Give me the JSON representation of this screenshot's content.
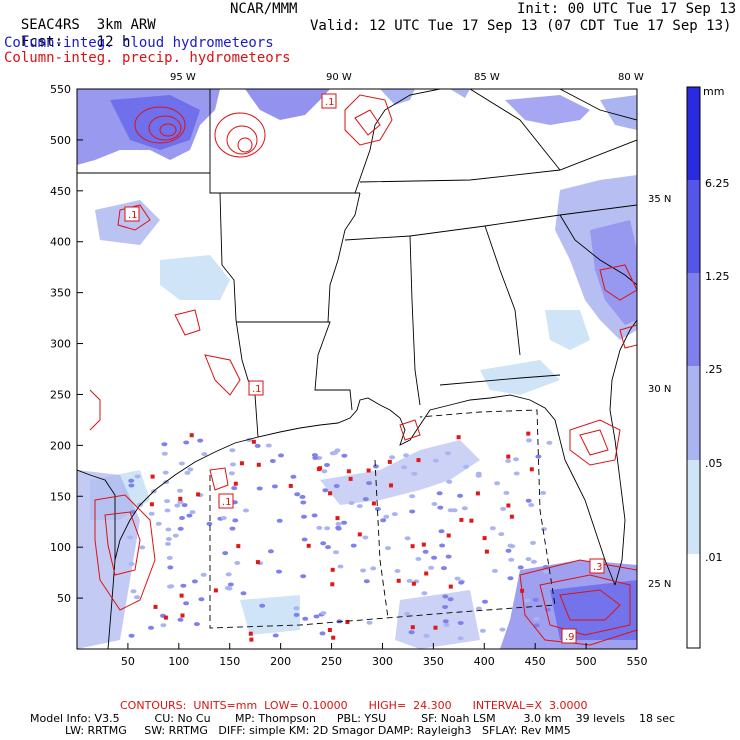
{
  "header": {
    "project": "SEAC4RS",
    "model": "3km ARW",
    "org": "NCAR/MMM",
    "init": "Init: 00 UTC Tue 17 Sep 13",
    "fcst_label": "Fcst:",
    "fcst_value": "12 h",
    "valid": "Valid: 12 UTC Tue 17 Sep 13 (07 CDT Tue 17 Sep 13)",
    "field_cloud": "Column-integ. cloud hydrometeors",
    "field_precip": "Column-integ. precip. hydrometeors"
  },
  "axes": {
    "lon_labels": [
      "95 W",
      "90 W",
      "85 W",
      "80 W"
    ],
    "lat_labels": [
      "35 N",
      "30 N",
      "25 N"
    ],
    "x_ticks": [
      "50",
      "100",
      "150",
      "200",
      "250",
      "300",
      "350",
      "400",
      "450",
      "500",
      "550"
    ],
    "y_ticks": [
      "50",
      "100",
      "150",
      "200",
      "250",
      "300",
      "350",
      "400",
      "450",
      "500",
      "550"
    ]
  },
  "colorbar": {
    "unit": "mm",
    "levels": [
      "6.25",
      "1.25",
      ".25",
      ".05",
      ".01"
    ],
    "colors": [
      "#2a2ae0",
      "#5555ea",
      "#8080ec",
      "#aab4f0",
      "#cfe4f6",
      "#eaf6fb",
      "#ffffff"
    ]
  },
  "contour_markers": [
    ".1",
    ".1",
    ".1",
    ".1",
    ".3",
    ".9"
  ],
  "footer": {
    "contours": "CONTOURS:  UNITS=mm  LOW= 0.10000      HIGH=  24.300      INTERVAL=X  3.0000",
    "model_info_1": "Model Info: V3.5          CU: No Cu       MP: Thompson      PBL: YSU          SF: Noah LSM        3.0 km    39 levels    18 sec",
    "model_info_2": "          LW: RRTMG     SW: RRTMG   DIFF: simple KM: 2D Smagor DAMP: Rayleigh3   SFLAY: Rev MM5"
  }
}
